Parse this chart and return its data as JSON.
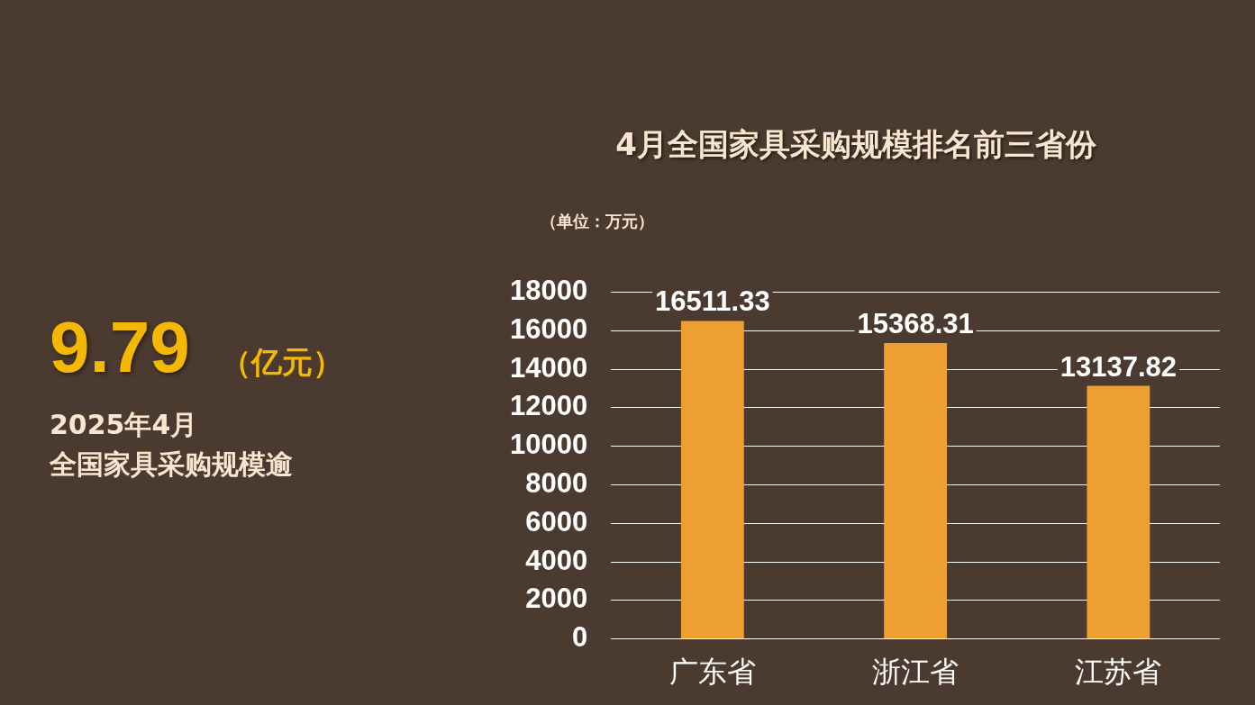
{
  "chart_data": {
    "type": "bar",
    "title": "4月全国家具采购规模排名前三省份",
    "ylabel": "（单位：万元）",
    "categories": [
      "广东省",
      "浙江省",
      "江苏省"
    ],
    "values": [
      16511.33,
      15368.31,
      13137.82
    ],
    "color": "#eda030",
    "ylim": [
      0,
      18000
    ],
    "yticks": [
      0,
      2000,
      4000,
      6000,
      8000,
      10000,
      12000,
      14000,
      16000,
      18000
    ],
    "grid": "y",
    "data_labels": true,
    "legend": false,
    "annotations": [
      "9.79",
      "（亿元）",
      "2025年4月",
      "全国家具采购规模逾"
    ]
  }
}
